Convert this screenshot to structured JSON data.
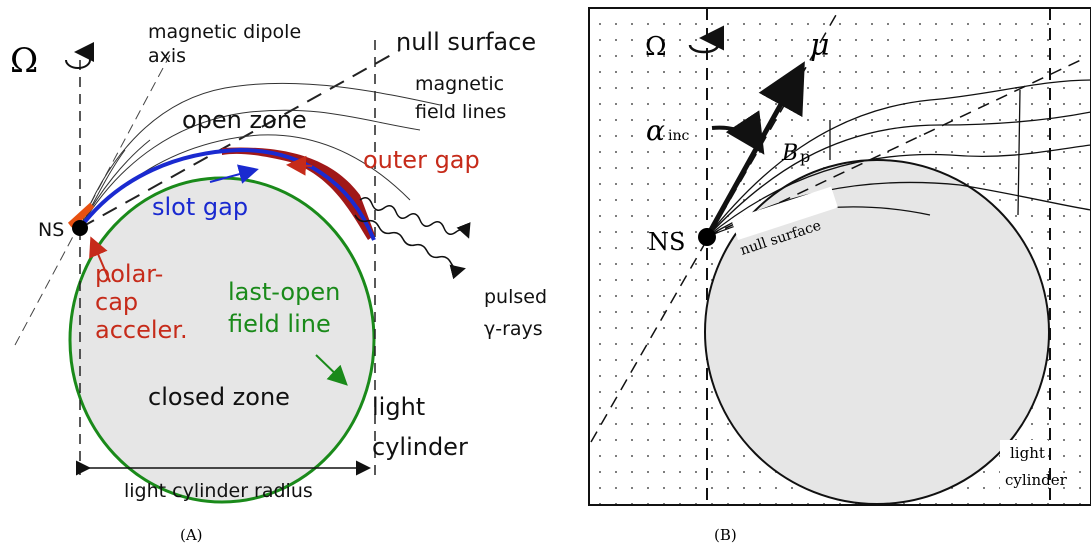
{
  "panels": [
    {
      "caption": "(A)",
      "omega": "Ω",
      "dipole_axis": [
        "magnetic dipole",
        "axis"
      ],
      "null_surface": "null surface",
      "field_lines": [
        "magnetic",
        "field lines"
      ],
      "open_zone": "open zone",
      "outer_gap": "outer gap",
      "slot_gap": "slot gap",
      "ns": "NS",
      "polar_cap": [
        "polar-",
        "cap",
        "acceler."
      ],
      "last_open": [
        "last-open",
        "field line"
      ],
      "closed_zone": "closed zone",
      "light_cylinder": [
        "light",
        "cylinder"
      ],
      "pulsed": [
        "pulsed",
        "γ-rays"
      ],
      "lc_radius": "light cylinder radius"
    },
    {
      "caption": "(B)",
      "omega": "Ω",
      "mu": "μ",
      "alpha": "α",
      "alpha_sub": "inc",
      "bp": "B",
      "bp_sub": "p",
      "ns": "NS",
      "null_surface": "null surface",
      "light_cylinder": [
        "light",
        "cylinder"
      ]
    }
  ]
}
